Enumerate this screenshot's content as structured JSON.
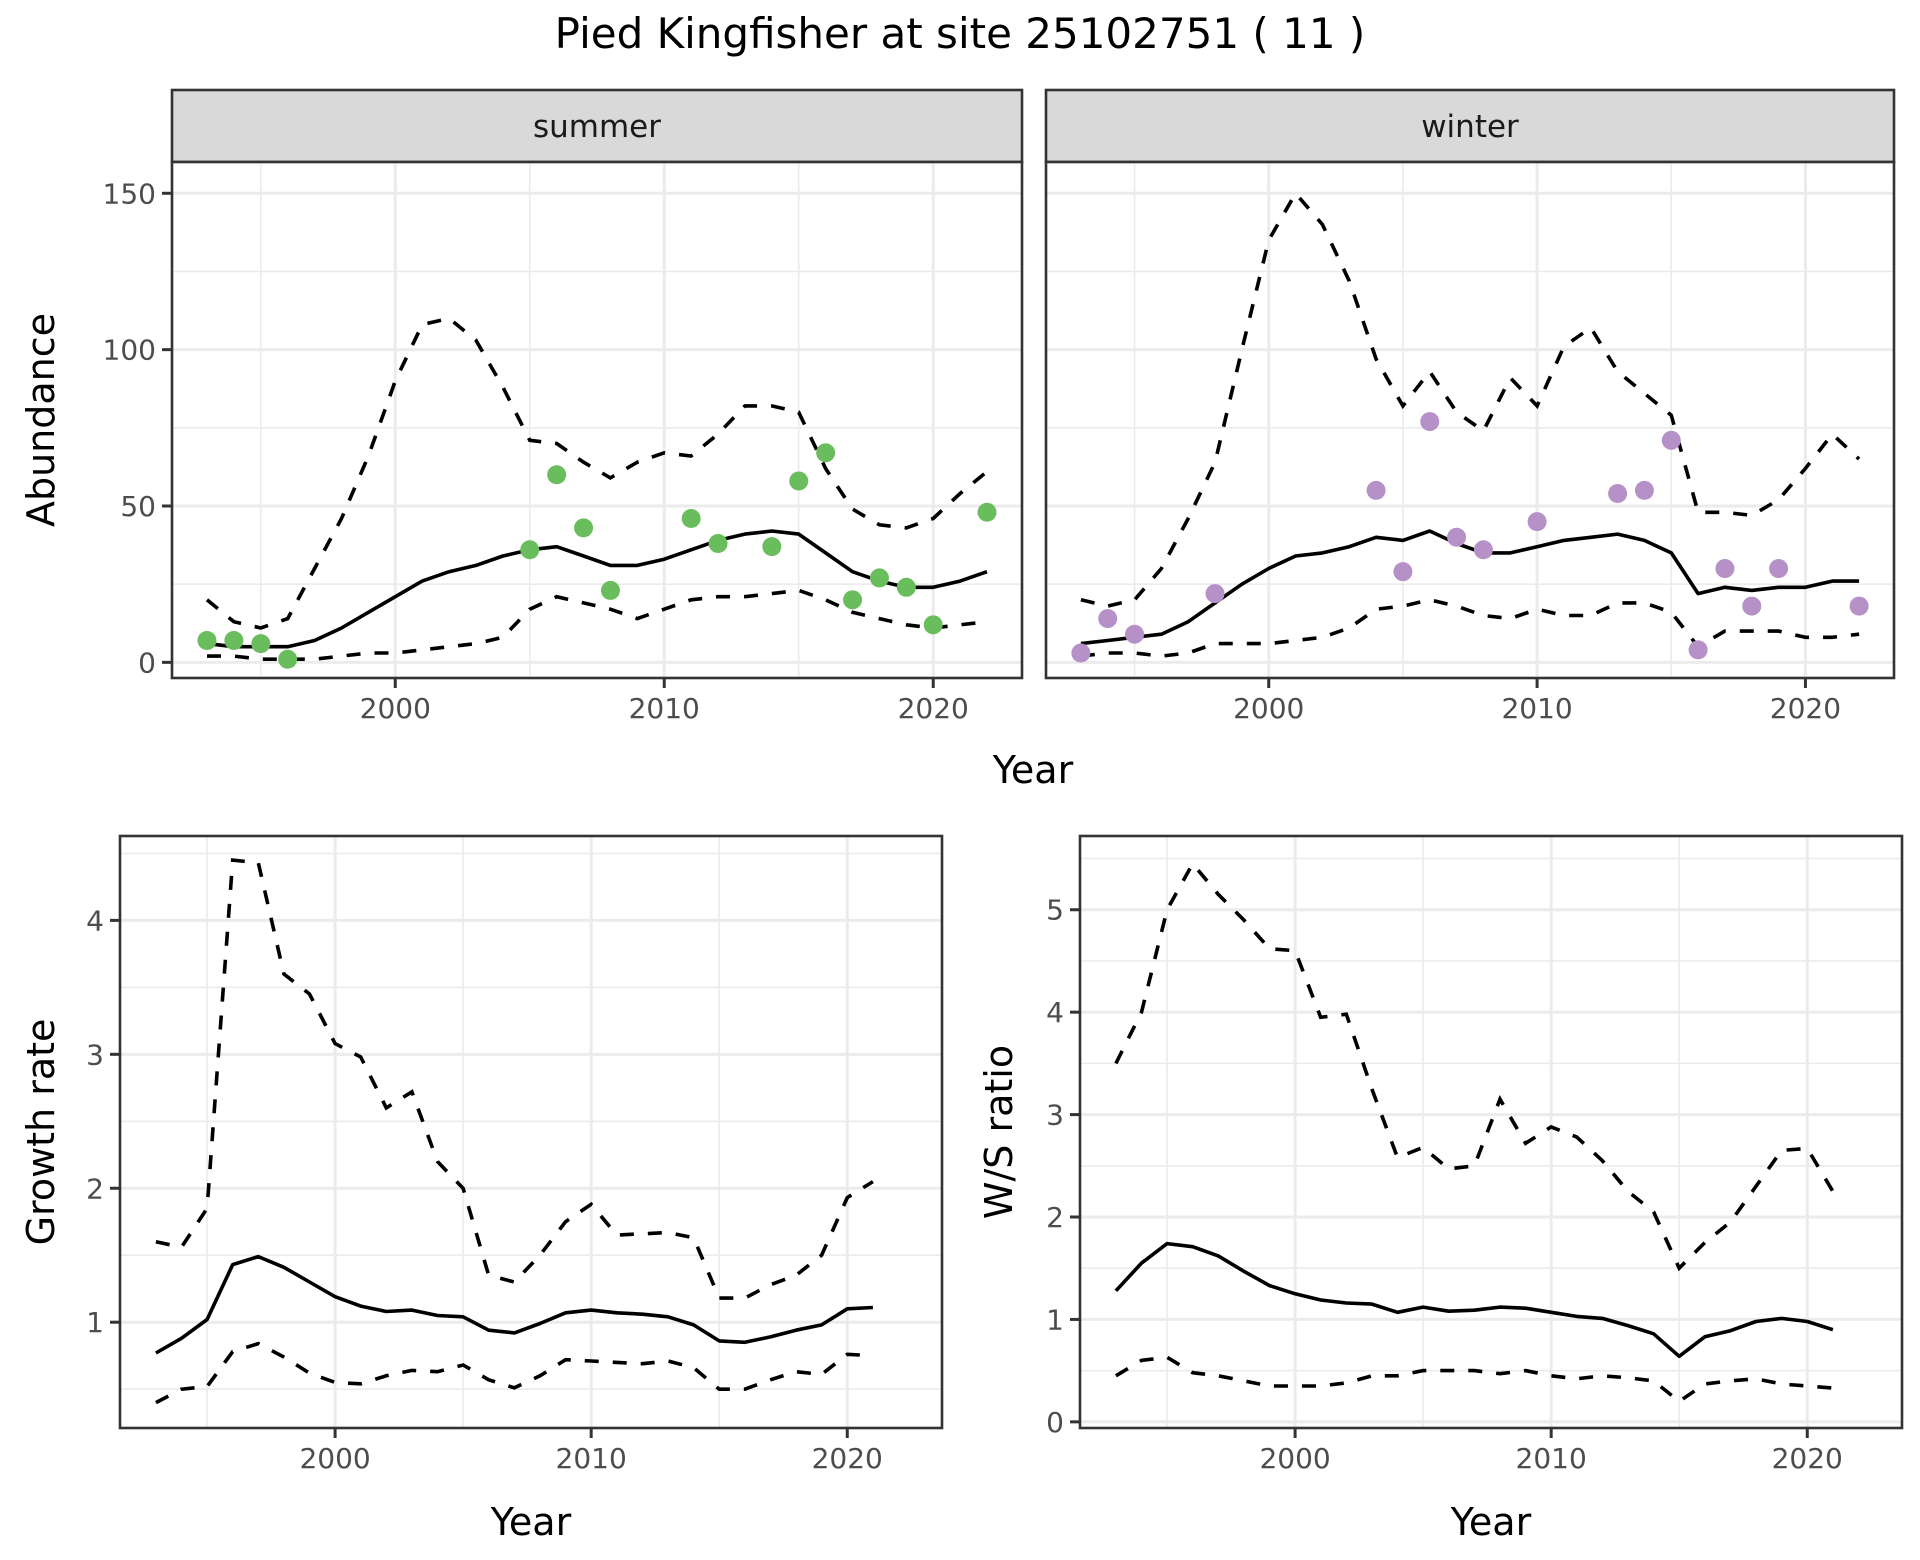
{
  "chart_data": [
    {
      "type": "line",
      "title": "Pied Kingfisher at site 25102751 ( 11 )",
      "facet": "summer",
      "xlabel": "Year",
      "ylabel": "Abundance",
      "xlim": [
        1991.7,
        2023.3
      ],
      "ylim": [
        -5,
        160
      ],
      "x_ticks": [
        2000,
        2010,
        2020
      ],
      "y_ticks": [
        0,
        50,
        100,
        150
      ],
      "grid": true,
      "point_color": "#6ABD5C",
      "x": [
        1993,
        1994,
        1995,
        1996,
        1997,
        1998,
        1999,
        2000,
        2001,
        2002,
        2003,
        2004,
        2005,
        2006,
        2007,
        2008,
        2009,
        2010,
        2011,
        2012,
        2013,
        2014,
        2015,
        2016,
        2017,
        2018,
        2019,
        2020,
        2021,
        2022
      ],
      "series": [
        {
          "name": "mean",
          "style": "solid",
          "values": [
            6,
            5,
            5,
            5,
            7,
            11,
            16,
            21,
            26,
            29,
            31,
            34,
            36,
            37,
            34,
            31,
            31,
            33,
            36,
            39,
            41,
            42,
            41,
            35,
            29,
            26,
            24,
            24,
            26,
            29
          ]
        },
        {
          "name": "upper",
          "style": "dashed",
          "values": [
            20,
            13,
            11,
            14,
            30,
            46,
            66,
            90,
            108,
            110,
            103,
            88,
            71,
            70,
            64,
            59,
            64,
            67,
            66,
            73,
            82,
            82,
            80,
            62,
            49,
            44,
            43,
            46,
            54,
            61
          ]
        },
        {
          "name": "lower",
          "style": "dashed",
          "values": [
            2,
            2,
            1,
            1,
            1,
            2,
            3,
            3,
            4,
            5,
            6,
            8,
            17,
            21,
            19,
            17,
            14,
            17,
            20,
            21,
            21,
            22,
            23,
            20,
            16,
            14,
            12,
            11,
            12,
            13
          ]
        }
      ],
      "points": [
        {
          "x": 1993,
          "y": 7
        },
        {
          "x": 1994,
          "y": 7
        },
        {
          "x": 1995,
          "y": 6
        },
        {
          "x": 1996,
          "y": 1
        },
        {
          "x": 2005,
          "y": 36
        },
        {
          "x": 2006,
          "y": 60
        },
        {
          "x": 2007,
          "y": 43
        },
        {
          "x": 2008,
          "y": 23
        },
        {
          "x": 2011,
          "y": 46
        },
        {
          "x": 2012,
          "y": 38
        },
        {
          "x": 2014,
          "y": 37
        },
        {
          "x": 2015,
          "y": 58
        },
        {
          "x": 2016,
          "y": 67
        },
        {
          "x": 2017,
          "y": 20
        },
        {
          "x": 2018,
          "y": 27
        },
        {
          "x": 2019,
          "y": 24
        },
        {
          "x": 2020,
          "y": 12
        },
        {
          "x": 2022,
          "y": 48
        }
      ]
    },
    {
      "type": "line",
      "facet": "winter",
      "xlabel": "Year",
      "ylabel": "Abundance",
      "xlim": [
        1991.7,
        2023.3
      ],
      "ylim": [
        -5,
        160
      ],
      "x_ticks": [
        2000,
        2010,
        2020
      ],
      "y_ticks": [
        0,
        50,
        100,
        150
      ],
      "grid": true,
      "point_color": "#B591C8",
      "x": [
        1993,
        1994,
        1995,
        1996,
        1997,
        1998,
        1999,
        2000,
        2001,
        2002,
        2003,
        2004,
        2005,
        2006,
        2007,
        2008,
        2009,
        2010,
        2011,
        2012,
        2013,
        2014,
        2015,
        2016,
        2017,
        2018,
        2019,
        2020,
        2021,
        2022
      ],
      "series": [
        {
          "name": "mean",
          "style": "solid",
          "values": [
            6,
            7,
            8,
            9,
            13,
            19,
            25,
            30,
            34,
            35,
            37,
            40,
            39,
            42,
            38,
            35,
            35,
            37,
            39,
            40,
            41,
            39,
            35,
            22,
            24,
            23,
            24,
            24,
            26,
            26
          ]
        },
        {
          "name": "upper",
          "style": "dashed",
          "values": [
            20,
            18,
            20,
            30,
            46,
            64,
            100,
            135,
            150,
            140,
            122,
            97,
            82,
            93,
            80,
            74,
            91,
            82,
            101,
            107,
            93,
            86,
            79,
            48,
            48,
            47,
            52,
            62,
            73,
            65
          ]
        },
        {
          "name": "lower",
          "style": "dashed",
          "values": [
            2,
            3,
            3,
            2,
            3,
            6,
            6,
            6,
            7,
            8,
            11,
            17,
            18,
            20,
            18,
            15,
            14,
            17,
            15,
            15,
            19,
            19,
            16,
            5,
            10,
            10,
            10,
            8,
            8,
            9
          ]
        }
      ],
      "points": [
        {
          "x": 1993,
          "y": 3
        },
        {
          "x": 1994,
          "y": 14
        },
        {
          "x": 1995,
          "y": 9
        },
        {
          "x": 1998,
          "y": 22
        },
        {
          "x": 2004,
          "y": 55
        },
        {
          "x": 2005,
          "y": 29
        },
        {
          "x": 2006,
          "y": 77
        },
        {
          "x": 2007,
          "y": 40
        },
        {
          "x": 2008,
          "y": 36
        },
        {
          "x": 2010,
          "y": 45
        },
        {
          "x": 2013,
          "y": 54
        },
        {
          "x": 2014,
          "y": 55
        },
        {
          "x": 2015,
          "y": 71
        },
        {
          "x": 2016,
          "y": 4
        },
        {
          "x": 2017,
          "y": 30
        },
        {
          "x": 2018,
          "y": 18
        },
        {
          "x": 2019,
          "y": 30
        },
        {
          "x": 2022,
          "y": 18
        }
      ]
    },
    {
      "type": "line",
      "facet": "growth",
      "xlabel": "Year",
      "ylabel": "Growth rate",
      "xlim": [
        1991.6,
        2023.7
      ],
      "ylim": [
        0.21,
        4.63
      ],
      "x_ticks": [
        2000,
        2010,
        2020
      ],
      "y_ticks": [
        1,
        2,
        3,
        4
      ],
      "grid": true,
      "x": [
        1993,
        1994,
        1995,
        1996,
        1997,
        1998,
        1999,
        2000,
        2001,
        2002,
        2003,
        2004,
        2005,
        2006,
        2007,
        2008,
        2009,
        2010,
        2011,
        2012,
        2013,
        2014,
        2015,
        2016,
        2017,
        2018,
        2019,
        2020,
        2021
      ],
      "series": [
        {
          "name": "mean",
          "style": "solid",
          "values": [
            0.77,
            0.88,
            1.02,
            1.43,
            1.49,
            1.41,
            1.3,
            1.19,
            1.12,
            1.08,
            1.09,
            1.05,
            1.04,
            0.94,
            0.92,
            0.99,
            1.07,
            1.09,
            1.07,
            1.06,
            1.04,
            0.98,
            0.86,
            0.85,
            0.89,
            0.94,
            0.98,
            1.1,
            1.11
          ]
        },
        {
          "name": "upper",
          "style": "dashed",
          "values": [
            1.6,
            1.56,
            1.85,
            4.45,
            4.43,
            3.6,
            3.45,
            3.08,
            2.98,
            2.6,
            2.72,
            2.2,
            2.0,
            1.35,
            1.3,
            1.5,
            1.75,
            1.88,
            1.65,
            1.66,
            1.67,
            1.63,
            1.18,
            1.18,
            1.28,
            1.35,
            1.5,
            1.93,
            2.05
          ]
        },
        {
          "name": "lower",
          "style": "dashed",
          "values": [
            0.4,
            0.5,
            0.52,
            0.78,
            0.84,
            0.74,
            0.62,
            0.55,
            0.54,
            0.6,
            0.64,
            0.63,
            0.68,
            0.57,
            0.51,
            0.6,
            0.72,
            0.71,
            0.7,
            0.69,
            0.71,
            0.66,
            0.5,
            0.5,
            0.57,
            0.63,
            0.61,
            0.76,
            0.75
          ]
        }
      ]
    },
    {
      "type": "line",
      "facet": "ws_ratio",
      "xlabel": "Year",
      "ylabel": "W/S ratio",
      "xlim": [
        1991.6,
        2023.7
      ],
      "ylim": [
        -0.06,
        5.72
      ],
      "x_ticks": [
        2000,
        2010,
        2020
      ],
      "y_ticks": [
        0,
        1,
        2,
        3,
        4,
        5
      ],
      "grid": true,
      "x": [
        1993,
        1994,
        1995,
        1996,
        1997,
        1998,
        1999,
        2000,
        2001,
        2002,
        2003,
        2004,
        2005,
        2006,
        2007,
        2008,
        2009,
        2010,
        2011,
        2012,
        2013,
        2014,
        2015,
        2016,
        2017,
        2018,
        2019,
        2020,
        2021
      ],
      "series": [
        {
          "name": "mean",
          "style": "solid",
          "values": [
            1.28,
            1.55,
            1.74,
            1.71,
            1.62,
            1.47,
            1.33,
            1.25,
            1.19,
            1.16,
            1.15,
            1.07,
            1.12,
            1.08,
            1.09,
            1.12,
            1.11,
            1.07,
            1.03,
            1.01,
            0.94,
            0.86,
            0.64,
            0.83,
            0.89,
            0.98,
            1.01,
            0.98,
            0.9
          ]
        },
        {
          "name": "upper",
          "style": "dashed",
          "values": [
            3.5,
            4.0,
            5.0,
            5.45,
            5.15,
            4.9,
            4.62,
            4.6,
            3.95,
            3.98,
            3.25,
            2.58,
            2.68,
            2.47,
            2.5,
            3.15,
            2.72,
            2.88,
            2.78,
            2.55,
            2.25,
            2.05,
            1.5,
            1.75,
            1.95,
            2.3,
            2.65,
            2.67,
            2.25
          ]
        },
        {
          "name": "lower",
          "style": "dashed",
          "values": [
            0.45,
            0.6,
            0.63,
            0.48,
            0.45,
            0.4,
            0.35,
            0.35,
            0.35,
            0.38,
            0.45,
            0.45,
            0.5,
            0.5,
            0.5,
            0.47,
            0.5,
            0.45,
            0.42,
            0.45,
            0.43,
            0.4,
            0.2,
            0.37,
            0.4,
            0.42,
            0.37,
            0.35,
            0.33
          ]
        }
      ]
    }
  ],
  "labels": {
    "title": "Pied Kingfisher at site 25102751 ( 11 )",
    "strip_summer": "summer",
    "strip_winter": "winter",
    "top_xlabel": "Year",
    "top_ylabel": "Abundance",
    "growth_xlabel": "Year",
    "growth_ylabel": "Growth rate",
    "ws_xlabel": "Year",
    "ws_ylabel": "W/S ratio"
  }
}
